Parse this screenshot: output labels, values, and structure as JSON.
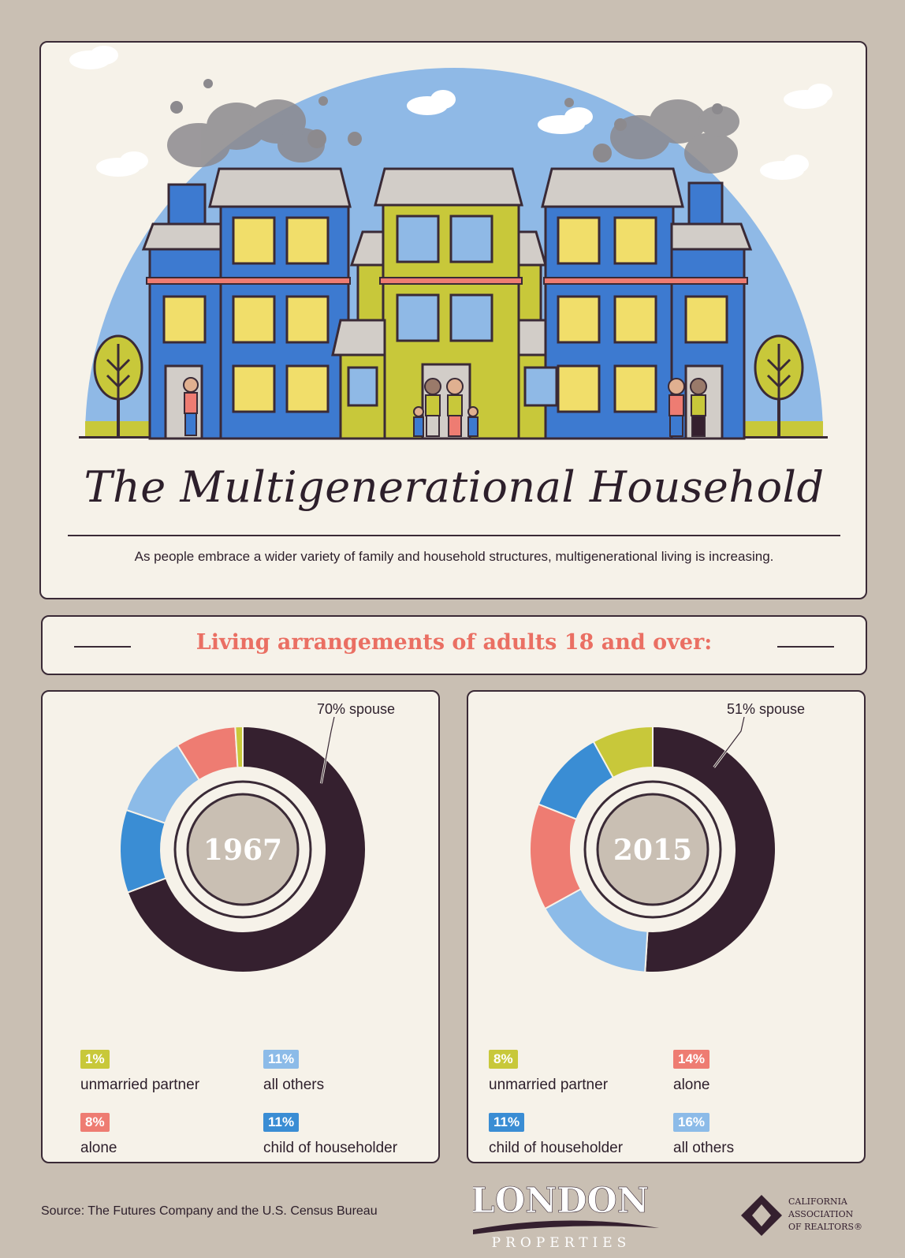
{
  "title": "The Multigenerational Household",
  "intro": "As people embrace a wider variety of family and household structures, multigenerational living is increasing.",
  "subtitle": "Living arrangements of adults 18 and over:",
  "colors": {
    "spouse": "#35202f",
    "child_of_householder": "#3a8dd4",
    "all_others": "#8cbbe8",
    "alone": "#ee7c72",
    "unmarried_partner": "#c8c83a",
    "accent": "#ea6f63",
    "background": "#c9bfb3",
    "card": "#f6f2e9"
  },
  "chart_data": [
    {
      "type": "pie",
      "center_label": "1967",
      "callout": "70% spouse",
      "slices": [
        {
          "category": "spouse",
          "value": 70
        },
        {
          "category": "child_of_householder",
          "value": 11
        },
        {
          "category": "all_others",
          "value": 11
        },
        {
          "category": "alone",
          "value": 8
        },
        {
          "category": "unmarried_partner",
          "value": 1
        }
      ],
      "legend": [
        {
          "category": "unmarried_partner",
          "pct": "1%",
          "label": "unmarried partner"
        },
        {
          "category": "all_others",
          "pct": "11%",
          "label": "all others"
        },
        {
          "category": "alone",
          "pct": "8%",
          "label": "alone"
        },
        {
          "category": "child_of_householder",
          "pct": "11%",
          "label": "child of householder"
        }
      ]
    },
    {
      "type": "pie",
      "center_label": "2015",
      "callout": "51% spouse",
      "slices": [
        {
          "category": "spouse",
          "value": 51
        },
        {
          "category": "all_others",
          "value": 16
        },
        {
          "category": "alone",
          "value": 14
        },
        {
          "category": "child_of_householder",
          "value": 11
        },
        {
          "category": "unmarried_partner",
          "value": 8
        }
      ],
      "legend": [
        {
          "category": "unmarried_partner",
          "pct": "8%",
          "label": "unmarried partner"
        },
        {
          "category": "alone",
          "pct": "14%",
          "label": "alone"
        },
        {
          "category": "child_of_householder",
          "pct": "11%",
          "label": "child of householder"
        },
        {
          "category": "all_others",
          "pct": "16%",
          "label": "all others"
        }
      ]
    }
  ],
  "source": "Source: The Futures Company and the U.S. Census Bureau",
  "logos": {
    "london_name": "LONDON",
    "london_sub": "PROPERTIES",
    "car_lines": [
      "CALIFORNIA",
      "ASSOCIATION",
      "OF REALTORS®"
    ]
  }
}
